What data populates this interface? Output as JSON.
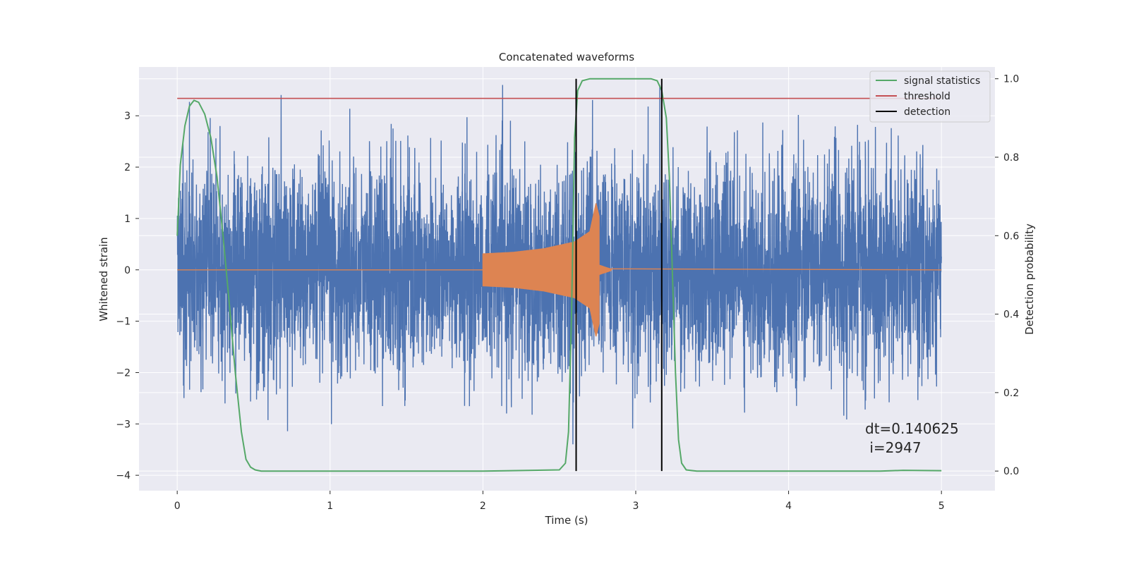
{
  "chart_data": {
    "type": "line",
    "title": "Concatenated waveforms",
    "xlabel": "Time (s)",
    "ylabel": "Whitened strain",
    "y2label": "Detection probability",
    "xlim": [
      -0.25,
      5.35
    ],
    "ylim": [
      -4.3,
      3.95
    ],
    "y2lim": [
      -0.05,
      1.03
    ],
    "xticks": [
      0,
      1,
      2,
      3,
      4,
      5
    ],
    "yticks": [
      -4,
      -3,
      -2,
      -1,
      0,
      1,
      2,
      3
    ],
    "y2ticks": [
      0.0,
      0.2,
      0.4,
      0.6,
      0.8,
      1.0
    ],
    "xtick_labels": [
      "0",
      "1",
      "2",
      "3",
      "4",
      "5"
    ],
    "ytick_labels": [
      "−4",
      "−3",
      "−2",
      "−1",
      "0",
      "1",
      "2",
      "3"
    ],
    "y2tick_labels": [
      "0.0",
      "0.2",
      "0.4",
      "0.6",
      "0.8",
      "1.0"
    ],
    "grid": true,
    "legend_position": "top-right",
    "colors": {
      "background": "#eaeaf2",
      "grid": "#ffffff",
      "strain": "#4c72b0",
      "injection": "#dd8452",
      "signal_statistics": "#55a868",
      "threshold": "#c44e52",
      "detection": "#000000"
    },
    "strain_noise": {
      "x_range": [
        0,
        5
      ],
      "approx_range": [
        -3.95,
        3.6
      ]
    },
    "injection_chirp": {
      "start": 2.0,
      "end": 2.76,
      "envelope_t": [
        2.0,
        2.2,
        2.4,
        2.6,
        2.7,
        2.74,
        2.76
      ],
      "envelope_amp": [
        0.32,
        0.35,
        0.42,
        0.55,
        0.75,
        1.3,
        1.05
      ],
      "after_amp": 0.02
    },
    "series": [
      {
        "name": "signal statistics",
        "axis": "y2",
        "x": [
          0.0,
          0.02,
          0.05,
          0.08,
          0.11,
          0.14,
          0.18,
          0.22,
          0.26,
          0.3,
          0.34,
          0.38,
          0.42,
          0.45,
          0.48,
          0.51,
          0.55,
          1.0,
          2.0,
          2.5,
          2.54,
          2.56,
          2.58,
          2.6,
          2.62,
          2.65,
          2.7,
          3.0,
          3.1,
          3.14,
          3.17,
          3.2,
          3.22,
          3.24,
          3.26,
          3.28,
          3.3,
          3.33,
          3.4,
          4.0,
          4.6,
          4.75,
          5.0
        ],
        "y": [
          0.6,
          0.78,
          0.88,
          0.93,
          0.945,
          0.94,
          0.91,
          0.85,
          0.75,
          0.6,
          0.43,
          0.25,
          0.1,
          0.03,
          0.01,
          0.003,
          0.0,
          0.0,
          0.0,
          0.003,
          0.02,
          0.1,
          0.4,
          0.85,
          0.97,
          0.995,
          1.0,
          1.0,
          1.0,
          0.995,
          0.97,
          0.9,
          0.75,
          0.5,
          0.25,
          0.08,
          0.02,
          0.003,
          0.0,
          0.0,
          0.0,
          0.002,
          0.001
        ]
      },
      {
        "name": "threshold",
        "axis": "y2",
        "x": [
          0,
          5
        ],
        "y": [
          0.95,
          0.95
        ]
      },
      {
        "name": "detection",
        "axis": "y2",
        "vlines": [
          2.61,
          3.17
        ],
        "ymin": 0.0,
        "ymax": 1.0
      }
    ],
    "annotation": {
      "line1": "dt=0.140625",
      "line2": " i=2947",
      "x": 4.5,
      "y": -3.1
    }
  }
}
